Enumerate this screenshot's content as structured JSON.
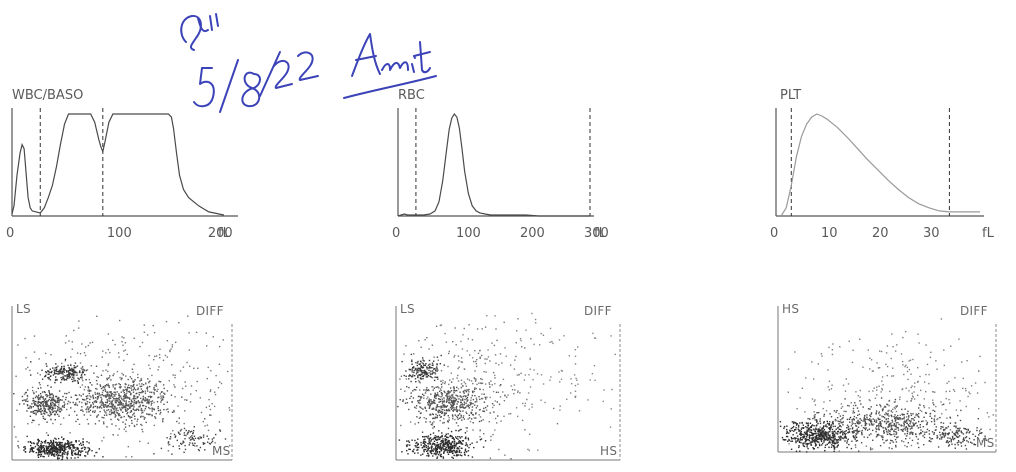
{
  "handwriting": {
    "text": "5/8/22 Amit"
  },
  "chart_data": [
    {
      "type": "line",
      "title": "WBC/BASO",
      "xlabel": "fL",
      "xlim": [
        0,
        220
      ],
      "ylim": [
        0,
        100
      ],
      "xticks": [
        "0",
        "100",
        "200"
      ],
      "xtick_values": [
        0,
        100,
        200
      ],
      "discriminators": [
        28,
        90
      ],
      "series": [
        {
          "x": [
            0,
            2,
            5,
            8,
            10,
            12,
            14,
            16,
            18,
            20,
            24,
            28,
            32,
            36,
            40,
            44,
            48,
            52,
            56,
            70,
            78,
            82,
            86,
            88,
            90,
            92,
            96,
            100,
            110,
            130,
            150,
            155,
            158,
            160,
            163,
            166,
            170,
            175,
            180,
            185,
            190,
            195,
            200,
            205,
            210
          ],
          "y": [
            2,
            10,
            40,
            62,
            70,
            66,
            42,
            18,
            8,
            5,
            4,
            3,
            8,
            18,
            30,
            48,
            70,
            90,
            100,
            100,
            100,
            92,
            75,
            68,
            63,
            72,
            92,
            100,
            100,
            100,
            100,
            100,
            97,
            86,
            62,
            40,
            26,
            18,
            14,
            10,
            7,
            4,
            3,
            2,
            1
          ]
        }
      ]
    },
    {
      "type": "line",
      "title": "RBC",
      "xlabel": "fL",
      "xlim": [
        0,
        300
      ],
      "ylim": [
        0,
        100
      ],
      "xticks": [
        "0",
        "100",
        "200",
        "300"
      ],
      "xtick_values": [
        0,
        100,
        200,
        300
      ],
      "discriminators": [
        28,
        300
      ],
      "series": [
        {
          "x": [
            0,
            5,
            10,
            15,
            20,
            25,
            30,
            40,
            50,
            58,
            64,
            70,
            76,
            80,
            84,
            88,
            92,
            96,
            100,
            104,
            110,
            116,
            122,
            128,
            136,
            145,
            160,
            180,
            200,
            220,
            250,
            300
          ],
          "y": [
            0,
            1,
            2,
            1,
            1,
            1,
            1,
            1,
            2,
            5,
            14,
            35,
            65,
            85,
            96,
            100,
            97,
            86,
            66,
            44,
            22,
            10,
            5,
            3,
            2,
            1,
            1,
            1,
            1,
            0,
            0,
            0
          ]
        }
      ]
    },
    {
      "type": "line",
      "title": "PLT",
      "xlabel": "fL",
      "xlim": [
        0,
        40
      ],
      "ylim": [
        0,
        100
      ],
      "xticks": [
        "0",
        "10",
        "20",
        "30"
      ],
      "xtick_values": [
        0,
        10,
        20,
        30
      ],
      "discriminators": [
        3,
        34
      ],
      "series": [
        {
          "x": [
            1,
            2,
            3,
            4,
            5,
            6,
            7,
            8,
            9,
            10,
            11,
            12,
            14,
            16,
            18,
            20,
            22,
            24,
            26,
            28,
            30,
            32,
            34,
            36,
            38,
            40
          ],
          "y": [
            0,
            8,
            30,
            58,
            78,
            90,
            97,
            100,
            98,
            95,
            91,
            87,
            77,
            66,
            55,
            45,
            35,
            26,
            18,
            12,
            8,
            5,
            4,
            4,
            4,
            4
          ]
        }
      ]
    },
    {
      "type": "scatter",
      "title": "",
      "ylabel": "LS",
      "xlabel": "MS",
      "corner_label": "DIFF",
      "xlim": [
        0,
        100
      ],
      "ylim": [
        0,
        100
      ],
      "clusters": [
        {
          "x": 20,
          "y": 8,
          "sx": 7,
          "sy": 3,
          "n": 420,
          "color": "#2c2c2c"
        },
        {
          "x": 15,
          "y": 38,
          "sx": 5,
          "sy": 5,
          "n": 260,
          "color": "#4a4a4a"
        },
        {
          "x": 24,
          "y": 58,
          "sx": 5,
          "sy": 3,
          "n": 180,
          "color": "#383838"
        },
        {
          "x": 50,
          "y": 40,
          "sx": 11,
          "sy": 7,
          "n": 620,
          "color": "#555555"
        },
        {
          "x": 82,
          "y": 14,
          "sx": 6,
          "sy": 4,
          "n": 90,
          "color": "#444444"
        },
        {
          "x": 50,
          "y": 50,
          "sx": 30,
          "sy": 26,
          "n": 380,
          "color": "#777777"
        }
      ]
    },
    {
      "type": "scatter",
      "title": "",
      "ylabel": "LS",
      "xlabel": "HS",
      "corner_label": "DIFF",
      "xlim": [
        0,
        100
      ],
      "ylim": [
        0,
        100
      ],
      "clusters": [
        {
          "x": 20,
          "y": 10,
          "sx": 7,
          "sy": 4,
          "n": 420,
          "color": "#2c2c2c"
        },
        {
          "x": 22,
          "y": 38,
          "sx": 9,
          "sy": 6,
          "n": 420,
          "color": "#505050"
        },
        {
          "x": 12,
          "y": 60,
          "sx": 4,
          "sy": 4,
          "n": 160,
          "color": "#383838"
        },
        {
          "x": 30,
          "y": 50,
          "sx": 18,
          "sy": 20,
          "n": 260,
          "color": "#777777"
        },
        {
          "x": 55,
          "y": 55,
          "sx": 25,
          "sy": 25,
          "n": 160,
          "color": "#888888"
        }
      ]
    },
    {
      "type": "scatter",
      "title": "",
      "ylabel": "HS",
      "xlabel": "MS",
      "corner_label": "DIFF",
      "xlim": [
        0,
        100
      ],
      "ylim": [
        0,
        100
      ],
      "clusters": [
        {
          "x": 18,
          "y": 12,
          "sx": 8,
          "sy": 5,
          "n": 520,
          "color": "#2c2c2c"
        },
        {
          "x": 50,
          "y": 20,
          "sx": 15,
          "sy": 7,
          "n": 520,
          "color": "#4e4e4e"
        },
        {
          "x": 82,
          "y": 12,
          "sx": 6,
          "sy": 4,
          "n": 120,
          "color": "#444444"
        },
        {
          "x": 55,
          "y": 40,
          "sx": 25,
          "sy": 22,
          "n": 300,
          "color": "#808080"
        }
      ]
    }
  ]
}
